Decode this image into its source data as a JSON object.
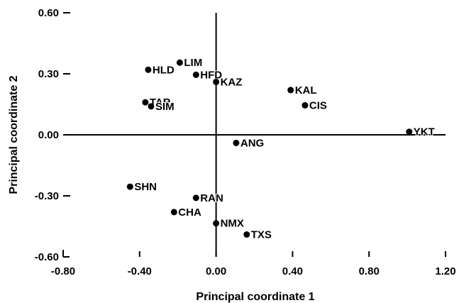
{
  "chart_data": {
    "type": "scatter",
    "xlabel": "Principal coordinate 1",
    "ylabel": "Principal coordinate 2",
    "xlim": [
      -0.8,
      1.2
    ],
    "ylim": [
      -0.6,
      0.6
    ],
    "xticks": [
      -0.8,
      -0.4,
      0.0,
      0.4,
      0.8,
      1.2
    ],
    "xtick_labels": [
      "-0.80",
      "-0.40",
      "0.00",
      "0.40",
      "0.80",
      "1.20"
    ],
    "yticks": [
      0.6,
      0.3,
      0.0,
      -0.3,
      -0.6
    ],
    "ytick_labels": [
      "0.60",
      "0.30",
      "0.00",
      "-0.30",
      "-0.60"
    ],
    "grid": false,
    "points": [
      {
        "label": "LIM",
        "x": -0.19,
        "y": 0.355
      },
      {
        "label": "HLD",
        "x": -0.355,
        "y": 0.32
      },
      {
        "label": "HFD",
        "x": -0.105,
        "y": 0.295
      },
      {
        "label": "KAZ",
        "x": 0.0,
        "y": 0.26
      },
      {
        "label": "KAL",
        "x": 0.39,
        "y": 0.22
      },
      {
        "label": "CIS",
        "x": 0.465,
        "y": 0.145
      },
      {
        "label": "TAR",
        "x": -0.37,
        "y": 0.16
      },
      {
        "label": "SIM",
        "x": -0.34,
        "y": 0.14
      },
      {
        "label": "YKT",
        "x": 1.01,
        "y": 0.015
      },
      {
        "label": "ANG",
        "x": 0.105,
        "y": -0.04
      },
      {
        "label": "SHN",
        "x": -0.45,
        "y": -0.255
      },
      {
        "label": "RAN",
        "x": -0.105,
        "y": -0.31
      },
      {
        "label": "CHA",
        "x": -0.22,
        "y": -0.38
      },
      {
        "label": "NMX",
        "x": 0.0,
        "y": -0.435
      },
      {
        "label": "TXS",
        "x": 0.16,
        "y": -0.49
      }
    ]
  }
}
